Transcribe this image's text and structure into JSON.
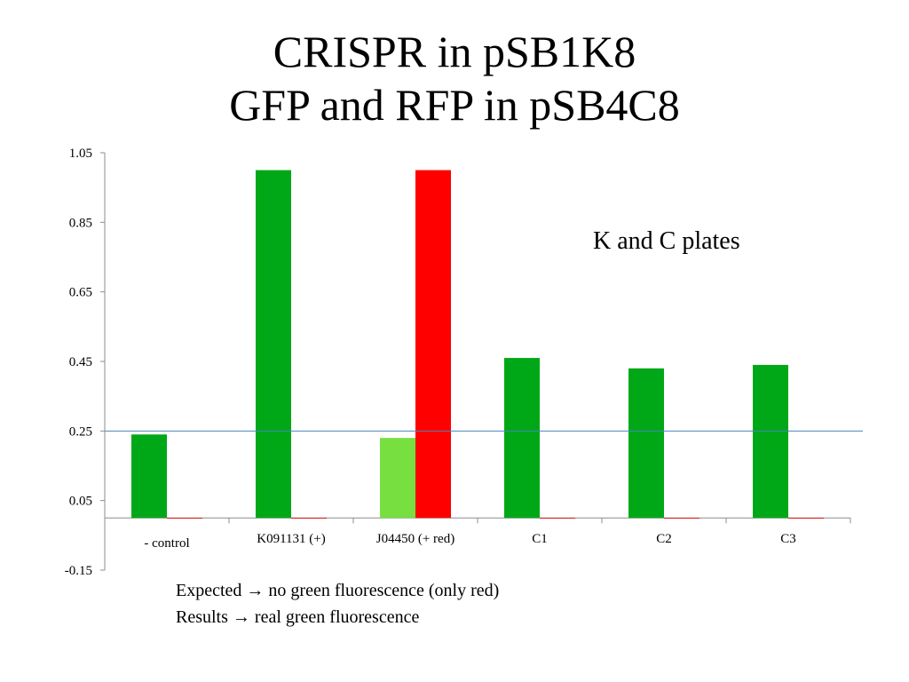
{
  "slide": {
    "title_line1": "CRISPR in pSB1K8",
    "title_line2": "GFP and RFP in pSB4C8",
    "notes": [
      {
        "label": "Expected",
        "arrow": "→",
        "text": "no green fluorescence (only red)"
      },
      {
        "label": "Results",
        "arrow": "→",
        "text": "real green fluorescence"
      }
    ]
  },
  "chart_data": {
    "type": "bar",
    "title": "",
    "xlabel": "",
    "ylabel": "",
    "ylim": [
      -0.15,
      1.05
    ],
    "yticks": [
      -0.15,
      0.05,
      0.25,
      0.45,
      0.65,
      0.85,
      1.05
    ],
    "ytick_labels": [
      "-0.15",
      "0.05",
      "0.25",
      "0.45",
      "0.65",
      "0.85",
      "1.05"
    ],
    "categories": [
      "- control",
      "K091131 (+)",
      "J04450 (+ red)",
      "C1",
      "C2",
      "C3"
    ],
    "series": [
      {
        "color": "#00a818",
        "values": [
          0.24,
          1.0,
          0.23,
          0.46,
          0.43,
          0.44
        ],
        "bar_colors": [
          "#00a818",
          "#00a818",
          "#77e040",
          "#00a818",
          "#00a818",
          "#00a818"
        ]
      },
      {
        "color": "#ff0000",
        "values": [
          0.0,
          0.0,
          1.0,
          0.0,
          0.0,
          0.0
        ]
      }
    ],
    "reference_line": {
      "value": 0.25,
      "color": "#4a86b8"
    },
    "grid": false,
    "legend": "none",
    "annotation": "K and C plates"
  }
}
